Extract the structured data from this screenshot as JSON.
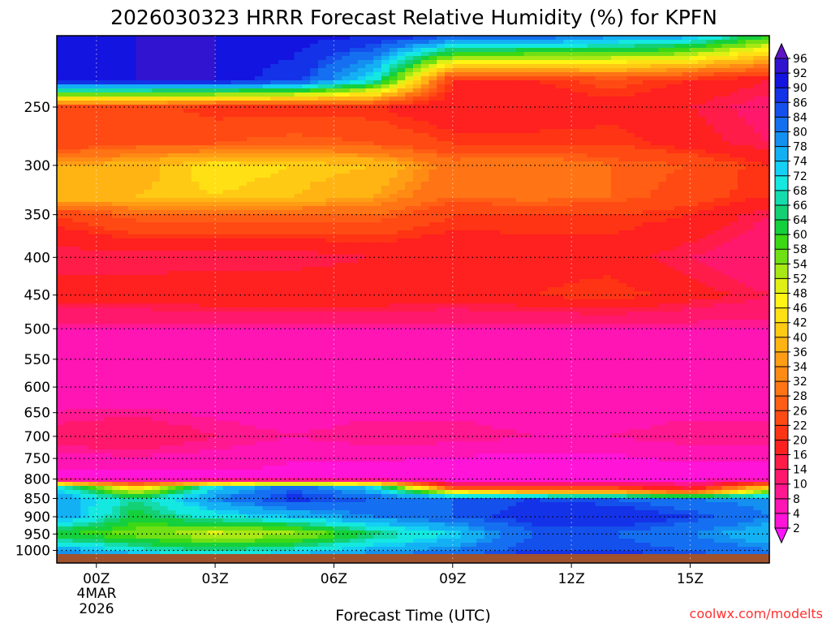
{
  "chart_data": {
    "type": "heatmap",
    "title": "2026030323 HRRR Forecast Relative Humidity (%) for KPFN",
    "xlabel": "Forecast Time (UTC)",
    "ylabel": "",
    "y_axis": {
      "scale": "log",
      "unit": "hPa",
      "range": [
        1040,
        200
      ],
      "ticks": [
        250,
        300,
        350,
        400,
        450,
        500,
        550,
        600,
        650,
        700,
        750,
        800,
        850,
        900,
        950,
        1000
      ]
    },
    "x_axis": {
      "range_hours": [
        -1,
        17
      ],
      "ticks": [
        "00Z",
        "03Z",
        "06Z",
        "09Z",
        "12Z",
        "15Z"
      ],
      "tick_hours": [
        0,
        3,
        6,
        9,
        12,
        15
      ],
      "date_label": [
        "4MAR",
        "2026"
      ]
    },
    "grid": "dotted",
    "colorbar": {
      "placement": "right",
      "levels": [
        2,
        4,
        8,
        10,
        14,
        16,
        20,
        22,
        26,
        28,
        32,
        34,
        36,
        40,
        42,
        46,
        48,
        52,
        54,
        58,
        60,
        64,
        66,
        68,
        72,
        74,
        78,
        80,
        84,
        86,
        90,
        92,
        96
      ],
      "colors": [
        "#ff14ff",
        "#ff14d8",
        "#ff14b4",
        "#ff1890",
        "#ff186c",
        "#ff1c48",
        "#ff2020",
        "#ff3414",
        "#ff4a14",
        "#ff5e14",
        "#ff7414",
        "#ff8a14",
        "#ff9e14",
        "#ffb414",
        "#ffca14",
        "#ffe014",
        "#fff414",
        "#e0f014",
        "#a8e814",
        "#70e014",
        "#3cd814",
        "#14d03c",
        "#14d074",
        "#14dcac",
        "#14e8e0",
        "#14d0f4",
        "#14b0f4",
        "#1490f0",
        "#1470f0",
        "#1450ec",
        "#1432e8",
        "#1414e0",
        "#3014d0",
        "#6014c8"
      ]
    },
    "ground_color": "#a0522d",
    "profile_hours": [
      -1,
      1,
      3,
      5,
      7,
      9,
      11,
      13,
      15,
      17
    ],
    "profiles": [
      [
        [
          200,
          90
        ],
        [
          230,
          92
        ],
        [
          250,
          24
        ],
        [
          280,
          22
        ],
        [
          300,
          36
        ],
        [
          330,
          40
        ],
        [
          350,
          22
        ],
        [
          400,
          14
        ],
        [
          450,
          18
        ],
        [
          500,
          8
        ],
        [
          600,
          4
        ],
        [
          700,
          12
        ],
        [
          760,
          6
        ],
        [
          800,
          2
        ],
        [
          820,
          72
        ],
        [
          850,
          78
        ],
        [
          900,
          78
        ],
        [
          950,
          60
        ],
        [
          1000,
          78
        ],
        [
          1040,
          90
        ]
      ],
      [
        [
          200,
          92
        ],
        [
          230,
          92
        ],
        [
          250,
          24
        ],
        [
          280,
          26
        ],
        [
          300,
          38
        ],
        [
          330,
          40
        ],
        [
          350,
          28
        ],
        [
          400,
          14
        ],
        [
          450,
          18
        ],
        [
          500,
          8
        ],
        [
          600,
          4
        ],
        [
          700,
          14
        ],
        [
          760,
          6
        ],
        [
          800,
          2
        ],
        [
          820,
          40
        ],
        [
          850,
          66
        ],
        [
          900,
          62
        ],
        [
          950,
          56
        ],
        [
          1000,
          70
        ],
        [
          1040,
          86
        ]
      ],
      [
        [
          200,
          92
        ],
        [
          230,
          92
        ],
        [
          250,
          20
        ],
        [
          280,
          26
        ],
        [
          300,
          44
        ],
        [
          330,
          42
        ],
        [
          350,
          28
        ],
        [
          400,
          14
        ],
        [
          450,
          20
        ],
        [
          500,
          8
        ],
        [
          600,
          4
        ],
        [
          700,
          10
        ],
        [
          760,
          6
        ],
        [
          800,
          2
        ],
        [
          820,
          72
        ],
        [
          850,
          80
        ],
        [
          900,
          70
        ],
        [
          950,
          50
        ],
        [
          1000,
          66
        ],
        [
          1040,
          84
        ]
      ],
      [
        [
          200,
          92
        ],
        [
          230,
          88
        ],
        [
          250,
          20
        ],
        [
          280,
          28
        ],
        [
          300,
          42
        ],
        [
          330,
          40
        ],
        [
          350,
          28
        ],
        [
          400,
          14
        ],
        [
          450,
          20
        ],
        [
          500,
          8
        ],
        [
          600,
          4
        ],
        [
          700,
          8
        ],
        [
          760,
          4
        ],
        [
          800,
          2
        ],
        [
          820,
          82
        ],
        [
          850,
          88
        ],
        [
          900,
          74
        ],
        [
          950,
          52
        ],
        [
          1000,
          70
        ],
        [
          1040,
          86
        ]
      ],
      [
        [
          200,
          90
        ],
        [
          230,
          70
        ],
        [
          250,
          20
        ],
        [
          280,
          26
        ],
        [
          300,
          40
        ],
        [
          330,
          36
        ],
        [
          350,
          28
        ],
        [
          400,
          16
        ],
        [
          450,
          20
        ],
        [
          500,
          8
        ],
        [
          600,
          4
        ],
        [
          700,
          10
        ],
        [
          760,
          4
        ],
        [
          800,
          2
        ],
        [
          820,
          72
        ],
        [
          850,
          84
        ],
        [
          900,
          80
        ],
        [
          950,
          64
        ],
        [
          1000,
          76
        ],
        [
          1040,
          88
        ]
      ],
      [
        [
          200,
          86
        ],
        [
          230,
          20
        ],
        [
          250,
          16
        ],
        [
          280,
          22
        ],
        [
          300,
          30
        ],
        [
          330,
          28
        ],
        [
          350,
          22
        ],
        [
          400,
          16
        ],
        [
          450,
          18
        ],
        [
          500,
          8
        ],
        [
          600,
          4
        ],
        [
          700,
          10
        ],
        [
          760,
          2
        ],
        [
          800,
          2
        ],
        [
          820,
          20
        ],
        [
          850,
          84
        ],
        [
          900,
          84
        ],
        [
          950,
          72
        ],
        [
          1000,
          80
        ],
        [
          1040,
          90
        ]
      ],
      [
        [
          200,
          84
        ],
        [
          230,
          20
        ],
        [
          250,
          16
        ],
        [
          280,
          22
        ],
        [
          300,
          32
        ],
        [
          330,
          30
        ],
        [
          350,
          22
        ],
        [
          400,
          18
        ],
        [
          450,
          20
        ],
        [
          500,
          8
        ],
        [
          600,
          4
        ],
        [
          700,
          8
        ],
        [
          760,
          2
        ],
        [
          800,
          2
        ],
        [
          830,
          30
        ],
        [
          850,
          86
        ],
        [
          900,
          88
        ],
        [
          950,
          84
        ],
        [
          1000,
          86
        ],
        [
          1040,
          90
        ]
      ],
      [
        [
          200,
          80
        ],
        [
          230,
          24
        ],
        [
          250,
          18
        ],
        [
          280,
          22
        ],
        [
          300,
          28
        ],
        [
          330,
          28
        ],
        [
          350,
          22
        ],
        [
          400,
          18
        ],
        [
          450,
          22
        ],
        [
          500,
          8
        ],
        [
          600,
          4
        ],
        [
          700,
          8
        ],
        [
          760,
          2
        ],
        [
          800,
          2
        ],
        [
          830,
          30
        ],
        [
          850,
          84
        ],
        [
          900,
          90
        ],
        [
          950,
          84
        ],
        [
          1000,
          86
        ],
        [
          1040,
          90
        ]
      ],
      [
        [
          200,
          76
        ],
        [
          230,
          20
        ],
        [
          250,
          16
        ],
        [
          280,
          18
        ],
        [
          300,
          26
        ],
        [
          330,
          24
        ],
        [
          350,
          20
        ],
        [
          400,
          14
        ],
        [
          450,
          18
        ],
        [
          500,
          8
        ],
        [
          600,
          4
        ],
        [
          700,
          10
        ],
        [
          760,
          4
        ],
        [
          800,
          2
        ],
        [
          830,
          20
        ],
        [
          850,
          80
        ],
        [
          900,
          86
        ],
        [
          950,
          80
        ],
        [
          1000,
          84
        ],
        [
          1040,
          88
        ]
      ],
      [
        [
          200,
          60
        ],
        [
          230,
          16
        ],
        [
          250,
          12
        ],
        [
          280,
          14
        ],
        [
          300,
          20
        ],
        [
          330,
          20
        ],
        [
          350,
          14
        ],
        [
          400,
          10
        ],
        [
          450,
          14
        ],
        [
          500,
          8
        ],
        [
          600,
          4
        ],
        [
          700,
          10
        ],
        [
          760,
          4
        ],
        [
          800,
          4
        ],
        [
          820,
          40
        ],
        [
          850,
          78
        ],
        [
          900,
          80
        ],
        [
          950,
          74
        ],
        [
          1000,
          80
        ],
        [
          1040,
          86
        ]
      ]
    ]
  },
  "credit": "coolwx.com/modelts"
}
